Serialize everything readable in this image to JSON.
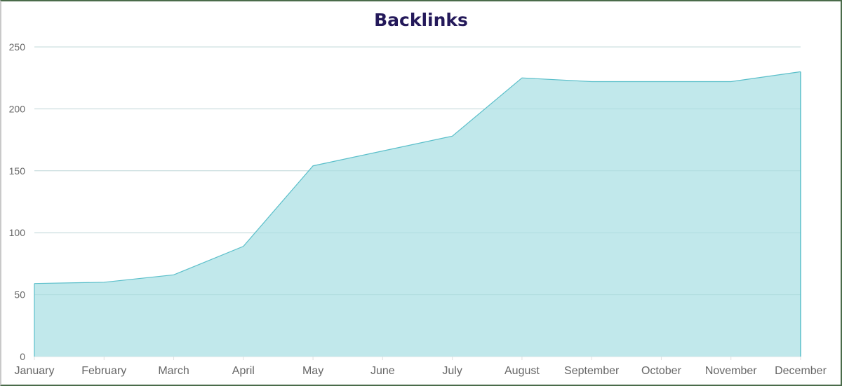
{
  "chart_data": {
    "type": "area",
    "title": "Backlinks",
    "xlabel": "",
    "ylabel": "",
    "categories": [
      "January",
      "February",
      "March",
      "April",
      "May",
      "June",
      "July",
      "August",
      "September",
      "October",
      "November",
      "December"
    ],
    "series": [
      {
        "name": "Backlinks",
        "values": [
          59,
          60,
          66,
          89,
          154,
          166,
          178,
          225,
          222,
          222,
          222,
          230
        ]
      }
    ],
    "ylim": [
      0,
      250
    ],
    "yticks": [
      0,
      50,
      100,
      150,
      200,
      250
    ],
    "grid": true,
    "legend": "none",
    "colors": {
      "line": "#5bbfca",
      "fill": "#c1e8eb",
      "grid": "#e0e0e0",
      "title": "#24195a",
      "tick_text": "#666666"
    }
  }
}
